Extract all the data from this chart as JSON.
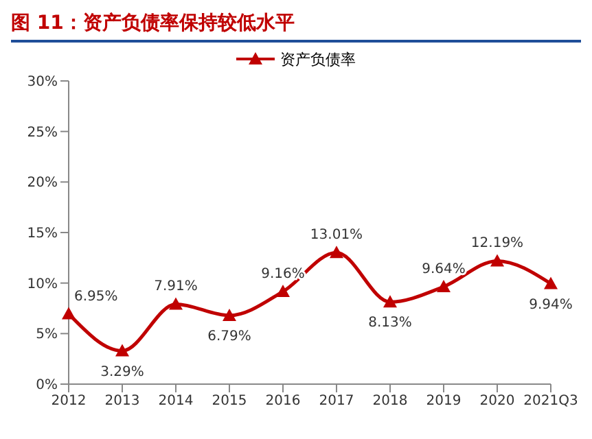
{
  "chart_data": {
    "type": "line",
    "title": "图 11：资产负债率保持较低水平",
    "categories": [
      "2012",
      "2013",
      "2014",
      "2015",
      "2016",
      "2017",
      "2018",
      "2019",
      "2020",
      "2021Q3"
    ],
    "series": [
      {
        "name": "资产负债率",
        "color": "#c00000",
        "values": [
          6.95,
          3.29,
          7.91,
          6.79,
          9.16,
          13.01,
          8.13,
          9.64,
          12.19,
          9.94
        ],
        "value_labels": [
          "6.95%",
          "3.29%",
          "7.91%",
          "6.79%",
          "9.16%",
          "13.01%",
          "8.13%",
          "9.64%",
          "12.19%",
          "9.94%"
        ]
      }
    ],
    "ylim": [
      0,
      30
    ],
    "yticks": [
      {
        "value": 0,
        "label": "0%"
      },
      {
        "value": 5,
        "label": "5%"
      },
      {
        "value": 10,
        "label": "10%"
      },
      {
        "value": 15,
        "label": "15%"
      },
      {
        "value": 20,
        "label": "20%"
      },
      {
        "value": 25,
        "label": "25%"
      },
      {
        "value": 30,
        "label": "30%"
      }
    ],
    "grid": false,
    "legend": "top",
    "marker": "triangle",
    "line_style": "solid"
  }
}
